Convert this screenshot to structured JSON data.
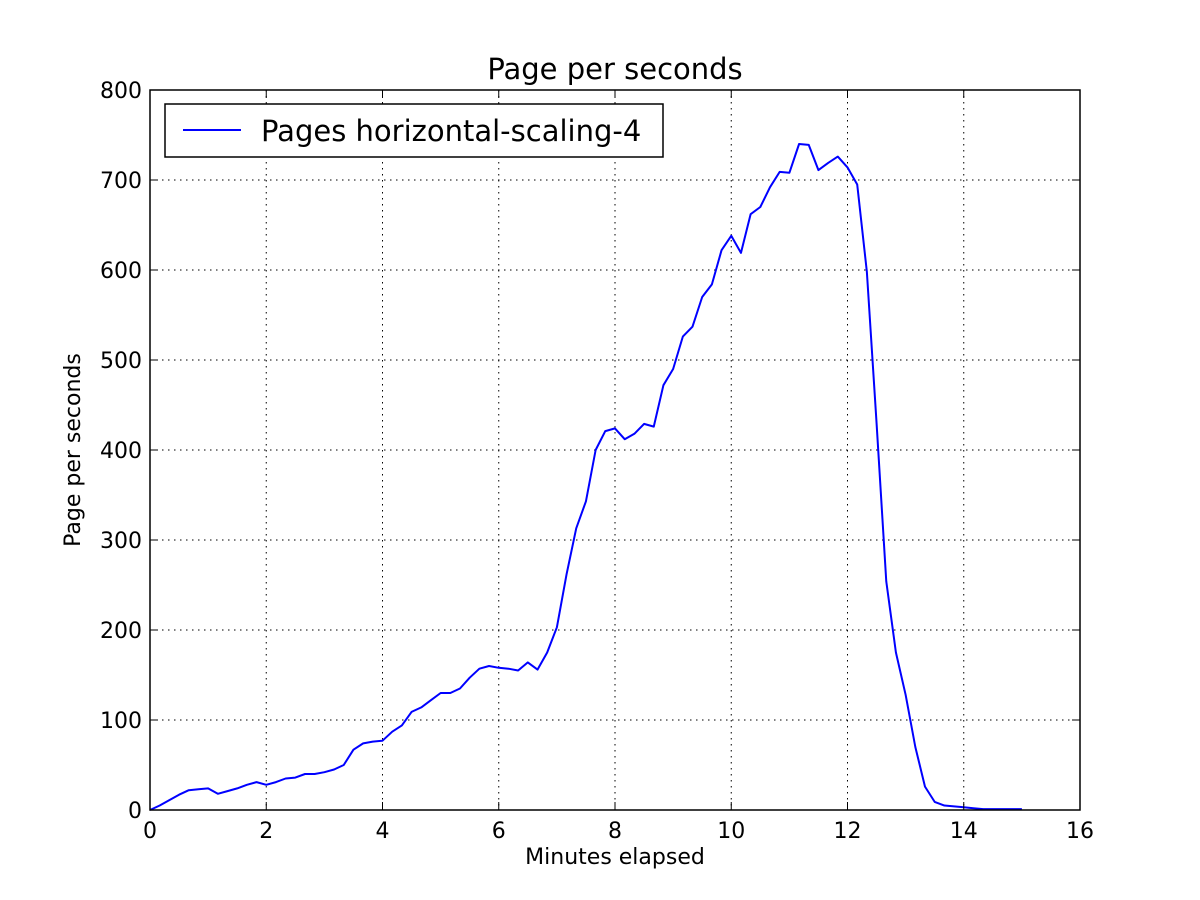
{
  "chart_data": {
    "type": "line",
    "title": "Page per seconds",
    "xlabel": "Minutes elapsed",
    "ylabel": "Page per seconds",
    "xlim": [
      0,
      16
    ],
    "ylim": [
      0,
      800
    ],
    "xticks": [
      0,
      2,
      4,
      6,
      8,
      10,
      12,
      14,
      16
    ],
    "yticks": [
      0,
      100,
      200,
      300,
      400,
      500,
      600,
      700,
      800
    ],
    "grid": true,
    "legend_position": "top-left",
    "series": [
      {
        "name": "Pages horizontal-scaling-4",
        "color": "#0000ff",
        "x": [
          0,
          0.167,
          0.333,
          0.5,
          0.667,
          0.833,
          1.0,
          1.167,
          1.333,
          1.5,
          1.667,
          1.833,
          2.0,
          2.167,
          2.333,
          2.5,
          2.667,
          2.833,
          3.0,
          3.167,
          3.333,
          3.5,
          3.667,
          3.833,
          4.0,
          4.167,
          4.333,
          4.5,
          4.667,
          4.833,
          5.0,
          5.167,
          5.333,
          5.5,
          5.667,
          5.833,
          6.0,
          6.167,
          6.333,
          6.5,
          6.667,
          6.833,
          7.0,
          7.167,
          7.333,
          7.5,
          7.667,
          7.833,
          8.0,
          8.167,
          8.333,
          8.5,
          8.667,
          8.833,
          9.0,
          9.167,
          9.333,
          9.5,
          9.667,
          9.833,
          10.0,
          10.167,
          10.333,
          10.5,
          10.667,
          10.833,
          11.0,
          11.167,
          11.333,
          11.5,
          11.667,
          11.833,
          12.0,
          12.167,
          12.333,
          12.5,
          12.667,
          12.833,
          13.0,
          13.167,
          13.333,
          13.5,
          13.667,
          13.833,
          14.0,
          14.167,
          14.333,
          14.5,
          14.667,
          14.833,
          15.0
        ],
        "values": [
          0,
          5,
          11,
          17,
          22,
          23,
          24,
          18,
          21,
          24,
          28,
          31,
          28,
          31,
          35,
          36,
          40,
          40,
          42,
          45,
          50,
          67,
          74,
          76,
          77,
          87,
          94,
          109,
          114,
          122,
          130,
          130,
          135,
          147,
          157,
          160,
          158,
          157,
          155,
          164,
          156,
          175,
          203,
          262,
          313,
          343,
          400,
          421,
          424,
          412,
          418,
          429,
          426,
          472,
          490,
          526,
          537,
          570,
          584,
          622,
          638,
          619,
          662,
          670,
          692,
          709,
          708,
          740,
          739,
          711,
          719,
          726,
          714,
          695,
          598,
          430,
          254,
          175,
          128,
          70,
          26,
          9,
          5,
          4,
          3,
          2,
          1,
          1,
          1,
          1,
          1
        ]
      }
    ]
  }
}
